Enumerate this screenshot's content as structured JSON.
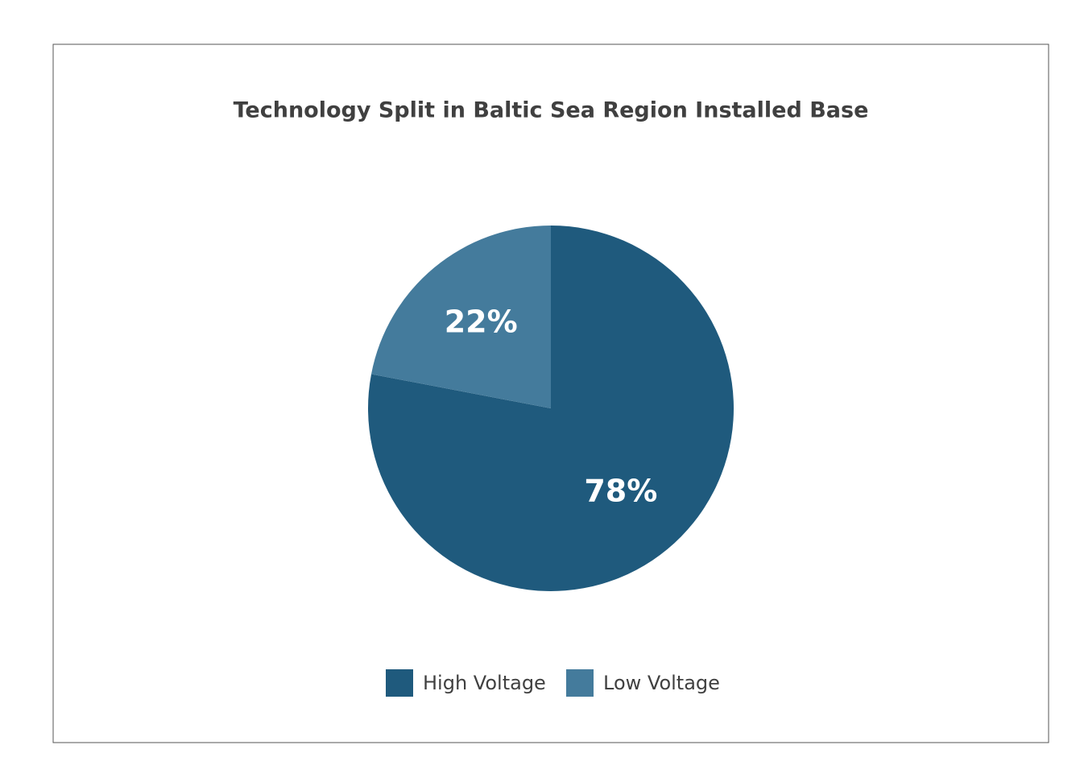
{
  "chart_data": {
    "type": "pie",
    "title": "Technology Split in Baltic Sea Region Installed Base",
    "categories": [
      "High Voltage",
      "Low Voltage"
    ],
    "values": [
      78,
      22
    ],
    "value_labels": [
      "78%",
      "22%"
    ],
    "colors": [
      "#1f5a7d",
      "#447b9c"
    ],
    "legend": "bottom"
  }
}
